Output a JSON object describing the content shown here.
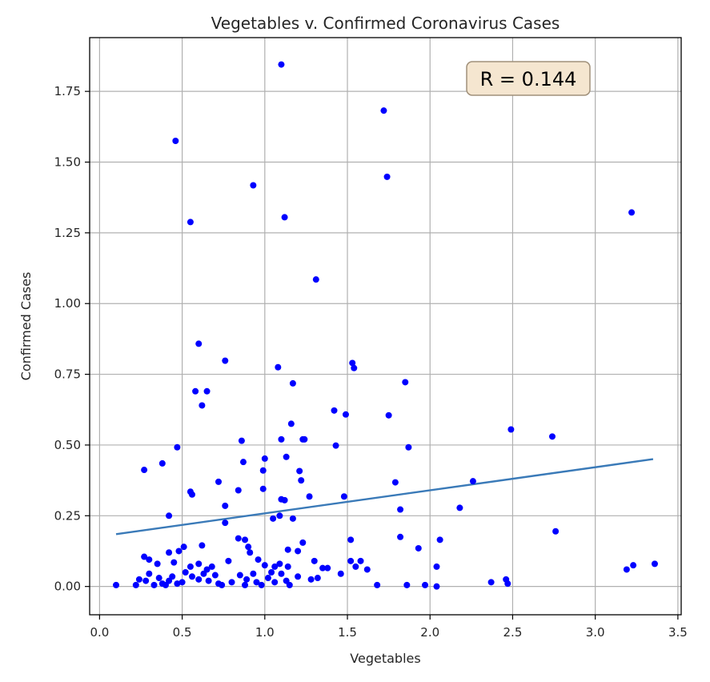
{
  "chart_data": {
    "type": "scatter",
    "title": "Vegetables v. Confirmed Coronavirus Cases",
    "xlabel": "Vegetables",
    "ylabel": "Confirmed Cases",
    "xlim": [
      -0.06,
      3.52
    ],
    "ylim": [
      -0.1,
      1.94
    ],
    "xticks": [
      0.0,
      0.5,
      1.0,
      1.5,
      2.0,
      2.5,
      3.0,
      3.5
    ],
    "xtick_labels": [
      "0.0",
      "0.5",
      "1.0",
      "1.5",
      "2.0",
      "2.5",
      "3.0",
      "3.5"
    ],
    "yticks": [
      0.0,
      0.25,
      0.5,
      0.75,
      1.0,
      1.25,
      1.5,
      1.75
    ],
    "ytick_labels": [
      "0.00",
      "0.25",
      "0.50",
      "0.75",
      "1.00",
      "1.25",
      "1.50",
      "1.75"
    ],
    "grid": true,
    "point_color": "#0000ff",
    "annotation": {
      "text": "R = 0.144",
      "location": "top-right",
      "box_fill": "#f5e6d0",
      "box_edge": "#a0907a"
    },
    "regression_line": {
      "x": [
        0.1,
        3.35
      ],
      "y": [
        0.185,
        0.45
      ],
      "color": "#3a7ab8"
    },
    "points": [
      [
        1.1,
        1.845
      ],
      [
        0.46,
        1.575
      ],
      [
        0.93,
        1.418
      ],
      [
        1.12,
        1.305
      ],
      [
        0.55,
        1.288
      ],
      [
        1.72,
        1.682
      ],
      [
        1.74,
        1.448
      ],
      [
        3.22,
        1.322
      ],
      [
        1.31,
        1.085
      ],
      [
        0.6,
        0.858
      ],
      [
        0.76,
        0.798
      ],
      [
        0.58,
        0.69
      ],
      [
        0.65,
        0.69
      ],
      [
        0.62,
        0.64
      ],
      [
        1.08,
        0.775
      ],
      [
        1.17,
        0.718
      ],
      [
        1.53,
        0.79
      ],
      [
        1.54,
        0.772
      ],
      [
        1.85,
        0.722
      ],
      [
        1.42,
        0.622
      ],
      [
        1.49,
        0.608
      ],
      [
        1.75,
        0.605
      ],
      [
        0.47,
        0.492
      ],
      [
        0.86,
        0.515
      ],
      [
        1.1,
        0.52
      ],
      [
        1.16,
        0.575
      ],
      [
        1.23,
        0.52
      ],
      [
        1.24,
        0.52
      ],
      [
        1.43,
        0.498
      ],
      [
        1.87,
        0.492
      ],
      [
        2.49,
        0.555
      ],
      [
        2.74,
        0.53
      ],
      [
        0.27,
        0.412
      ],
      [
        0.38,
        0.435
      ],
      [
        0.87,
        0.44
      ],
      [
        1.0,
        0.452
      ],
      [
        1.13,
        0.458
      ],
      [
        1.21,
        0.408
      ],
      [
        0.99,
        0.41
      ],
      [
        1.22,
        0.375
      ],
      [
        0.72,
        0.37
      ],
      [
        1.79,
        0.368
      ],
      [
        2.26,
        0.372
      ],
      [
        0.55,
        0.335
      ],
      [
        0.56,
        0.325
      ],
      [
        0.84,
        0.34
      ],
      [
        0.99,
        0.345
      ],
      [
        1.1,
        0.308
      ],
      [
        1.12,
        0.305
      ],
      [
        1.27,
        0.318
      ],
      [
        1.48,
        0.318
      ],
      [
        0.76,
        0.285
      ],
      [
        0.42,
        0.25
      ],
      [
        1.09,
        0.25
      ],
      [
        1.05,
        0.24
      ],
      [
        1.17,
        0.24
      ],
      [
        1.82,
        0.272
      ],
      [
        2.18,
        0.278
      ],
      [
        0.76,
        0.225
      ],
      [
        0.84,
        0.17
      ],
      [
        0.88,
        0.165
      ],
      [
        0.9,
        0.14
      ],
      [
        0.91,
        0.12
      ],
      [
        1.14,
        0.13
      ],
      [
        1.52,
        0.165
      ],
      [
        1.82,
        0.175
      ],
      [
        2.06,
        0.165
      ],
      [
        2.76,
        0.195
      ],
      [
        0.27,
        0.105
      ],
      [
        0.3,
        0.095
      ],
      [
        0.42,
        0.12
      ],
      [
        0.48,
        0.125
      ],
      [
        0.51,
        0.14
      ],
      [
        0.62,
        0.145
      ],
      [
        0.35,
        0.08
      ],
      [
        0.45,
        0.085
      ],
      [
        0.55,
        0.07
      ],
      [
        0.6,
        0.08
      ],
      [
        0.65,
        0.06
      ],
      [
        0.68,
        0.07
      ],
      [
        0.78,
        0.09
      ],
      [
        0.96,
        0.095
      ],
      [
        1.0,
        0.075
      ],
      [
        1.06,
        0.07
      ],
      [
        1.09,
        0.08
      ],
      [
        1.14,
        0.07
      ],
      [
        1.2,
        0.125
      ],
      [
        1.23,
        0.155
      ],
      [
        1.3,
        0.09
      ],
      [
        1.35,
        0.065
      ],
      [
        1.38,
        0.065
      ],
      [
        1.52,
        0.09
      ],
      [
        1.55,
        0.07
      ],
      [
        1.58,
        0.09
      ],
      [
        1.62,
        0.06
      ],
      [
        1.93,
        0.135
      ],
      [
        2.04,
        0.07
      ],
      [
        0.24,
        0.025
      ],
      [
        0.28,
        0.02
      ],
      [
        0.3,
        0.045
      ],
      [
        0.36,
        0.03
      ],
      [
        0.38,
        0.01
      ],
      [
        0.4,
        0.005
      ],
      [
        0.44,
        0.035
      ],
      [
        0.47,
        0.01
      ],
      [
        0.5,
        0.015
      ],
      [
        0.52,
        0.05
      ],
      [
        0.56,
        0.035
      ],
      [
        0.6,
        0.025
      ],
      [
        0.63,
        0.045
      ],
      [
        0.66,
        0.02
      ],
      [
        0.7,
        0.04
      ],
      [
        0.72,
        0.01
      ],
      [
        0.74,
        0.005
      ],
      [
        0.8,
        0.015
      ],
      [
        0.85,
        0.04
      ],
      [
        0.89,
        0.025
      ],
      [
        0.93,
        0.045
      ],
      [
        0.95,
        0.015
      ],
      [
        0.98,
        0.005
      ],
      [
        1.02,
        0.03
      ],
      [
        1.04,
        0.05
      ],
      [
        1.06,
        0.015
      ],
      [
        1.1,
        0.045
      ],
      [
        1.13,
        0.02
      ],
      [
        1.15,
        0.005
      ],
      [
        1.2,
        0.035
      ],
      [
        1.28,
        0.025
      ],
      [
        1.32,
        0.03
      ],
      [
        1.46,
        0.045
      ],
      [
        1.68,
        0.005
      ],
      [
        1.86,
        0.005
      ],
      [
        1.97,
        0.005
      ],
      [
        2.04,
        0.0
      ],
      [
        2.37,
        0.015
      ],
      [
        2.46,
        0.025
      ],
      [
        2.47,
        0.01
      ],
      [
        3.19,
        0.06
      ],
      [
        3.23,
        0.075
      ],
      [
        3.36,
        0.08
      ],
      [
        0.1,
        0.005
      ],
      [
        0.22,
        0.005
      ],
      [
        0.33,
        0.005
      ],
      [
        0.42,
        0.02
      ],
      [
        0.88,
        0.005
      ]
    ]
  }
}
